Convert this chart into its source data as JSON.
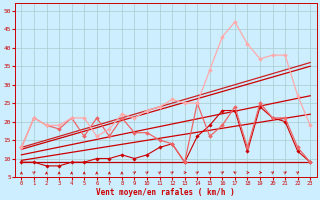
{
  "xlabel": "Vent moyen/en rafales ( km/h )",
  "background_color": "#cceeff",
  "grid_color": "#aacccc",
  "xlim": [
    -0.5,
    23.5
  ],
  "ylim": [
    5,
    52
  ],
  "yticks": [
    5,
    10,
    15,
    20,
    25,
    30,
    35,
    40,
    45,
    50
  ],
  "xticks": [
    0,
    1,
    2,
    3,
    4,
    5,
    6,
    7,
    8,
    9,
    10,
    11,
    12,
    13,
    14,
    15,
    16,
    17,
    18,
    19,
    20,
    21,
    22,
    23
  ],
  "series": [
    {
      "x": [
        0,
        23
      ],
      "y": [
        9,
        9
      ],
      "color": "#bb0000",
      "linewidth": 0.9,
      "marker": null
    },
    {
      "x": [
        0,
        23
      ],
      "y": [
        9.5,
        22
      ],
      "color": "#cc0000",
      "linewidth": 0.9,
      "marker": null
    },
    {
      "x": [
        0,
        23
      ],
      "y": [
        11,
        27
      ],
      "color": "#cc0000",
      "linewidth": 0.9,
      "marker": null
    },
    {
      "x": [
        0,
        23
      ],
      "y": [
        12.5,
        35
      ],
      "color": "#cc0000",
      "linewidth": 0.9,
      "marker": null
    },
    {
      "x": [
        0,
        23
      ],
      "y": [
        13,
        36
      ],
      "color": "#cc2222",
      "linewidth": 0.9,
      "marker": null
    },
    {
      "x": [
        0,
        1,
        2,
        3,
        4,
        5,
        6,
        7,
        8,
        9,
        10,
        11,
        12,
        13,
        14,
        15,
        16,
        17,
        18,
        19,
        20,
        21,
        22,
        23
      ],
      "y": [
        9,
        9,
        8,
        8,
        9,
        9,
        10,
        10,
        11,
        10,
        11,
        13,
        14,
        9,
        16,
        19,
        23,
        23,
        12,
        24,
        21,
        20,
        12,
        9
      ],
      "color": "#cc0000",
      "linewidth": 0.8,
      "marker": "D",
      "markersize": 1.8
    },
    {
      "x": [
        0,
        1,
        2,
        3,
        4,
        5,
        6,
        7,
        8,
        9,
        10,
        11,
        12,
        13,
        14,
        15,
        16,
        17,
        18,
        19,
        20,
        21,
        22,
        23
      ],
      "y": [
        13,
        21,
        19,
        18,
        21,
        16,
        21,
        16,
        21,
        17,
        17,
        15,
        14,
        9,
        25,
        16,
        19,
        24,
        13,
        25,
        21,
        21,
        13,
        9
      ],
      "color": "#ee6666",
      "linewidth": 0.9,
      "marker": "D",
      "markersize": 2.0
    },
    {
      "x": [
        0,
        1,
        2,
        3,
        4,
        5,
        6,
        7,
        8,
        9,
        10,
        11,
        12,
        13,
        14,
        15,
        16,
        17,
        18,
        19,
        20,
        21,
        22,
        23
      ],
      "y": [
        13,
        21,
        19,
        19,
        21,
        21,
        16,
        18,
        22,
        21,
        23,
        24,
        26,
        25,
        25,
        34,
        43,
        47,
        41,
        37,
        38,
        38,
        27,
        19
      ],
      "color": "#ffaaaa",
      "linewidth": 0.9,
      "marker": "D",
      "markersize": 2.0
    }
  ],
  "wind_arrows": {
    "y_data": 6.2,
    "color": "#cc0000",
    "angles_deg": [
      90,
      45,
      90,
      90,
      90,
      90,
      90,
      90,
      90,
      45,
      45,
      45,
      45,
      0,
      45,
      45,
      45,
      135,
      0,
      0,
      45,
      45,
      45
    ]
  }
}
